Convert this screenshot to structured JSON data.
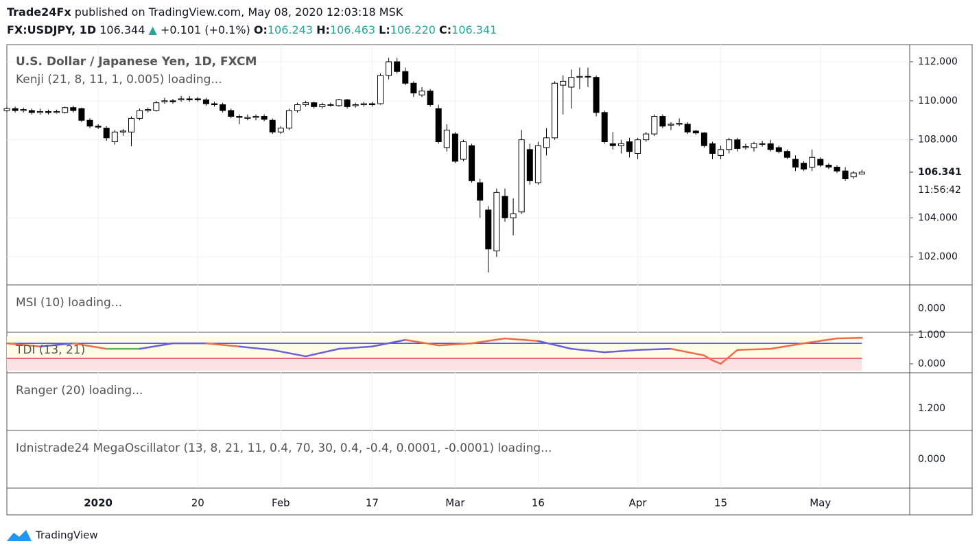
{
  "header": {
    "publisher": "Trade24Fx",
    "published": "published on TradingView.com, May 08, 2020 12:03:18 MSK",
    "symbol": "FX:USDJPY, 1D",
    "price": "106.344",
    "change": "+0.101 (+0.1%)",
    "ohlc": [
      {
        "label": "O:",
        "value": "106.243"
      },
      {
        "label": "H:",
        "value": "106.463"
      },
      {
        "label": "L:",
        "value": "106.220"
      },
      {
        "label": "C:",
        "value": "106.341"
      }
    ]
  },
  "chart_data": [
    {
      "type": "candlestick",
      "title": "U.S. Dollar / Japanese Yen, 1D, FXCM",
      "subtitle": "Kenji (21, 8, 11, 1, 0.005) loading...",
      "countdown": "11:56:42",
      "up_color": "#ffffff",
      "down_color": "#000000",
      "categories": [
        null,
        null,
        null,
        null,
        null,
        null,
        null,
        null,
        null,
        null,
        null,
        "2020",
        null,
        null,
        null,
        null,
        null,
        null,
        null,
        null,
        null,
        null,
        null,
        "20",
        null,
        null,
        null,
        null,
        null,
        null,
        null,
        null,
        null,
        "Feb",
        null,
        null,
        null,
        null,
        null,
        null,
        null,
        null,
        null,
        null,
        "17",
        null,
        null,
        null,
        null,
        null,
        null,
        null,
        null,
        null,
        "Mar",
        null,
        null,
        null,
        null,
        null,
        null,
        null,
        null,
        null,
        "16",
        null,
        null,
        null,
        null,
        null,
        null,
        null,
        null,
        null,
        null,
        null,
        "Apr",
        null,
        null,
        null,
        null,
        null,
        null,
        null,
        null,
        null,
        "15",
        null,
        null,
        null,
        null,
        null,
        null,
        null,
        null,
        null,
        null,
        null,
        "May",
        null,
        null,
        null,
        null,
        null
      ],
      "open": [
        109.5,
        109.6,
        109.5,
        109.5,
        109.4,
        109.45,
        109.4,
        109.4,
        109.65,
        109.6,
        109.0,
        108.7,
        108.6,
        107.9,
        108.4,
        108.4,
        109.1,
        109.5,
        109.5,
        109.95,
        110.0,
        110.05,
        110.1,
        110.1,
        110.05,
        109.85,
        109.8,
        109.5,
        109.2,
        109.1,
        109.15,
        109.2,
        109.0,
        108.4,
        108.6,
        109.5,
        109.8,
        109.9,
        109.7,
        109.8,
        109.75,
        110.05,
        109.75,
        109.8,
        109.85,
        109.85,
        111.3,
        112.0,
        111.5,
        110.9,
        110.3,
        110.5,
        109.6,
        107.6,
        108.3,
        107.0,
        107.7,
        105.8,
        104.4,
        102.3,
        105.1,
        104.0,
        104.3,
        107.5,
        105.8,
        107.6,
        108.1,
        110.8,
        110.7,
        111.2,
        111.25,
        111.2,
        109.4,
        107.8,
        107.7,
        107.9,
        107.3,
        108.0,
        108.3,
        109.2,
        108.75,
        108.8,
        108.8,
        108.45,
        108.35,
        107.8,
        107.2,
        107.5,
        108.0,
        107.6,
        107.6,
        107.8,
        107.8,
        107.6,
        107.4,
        107.0,
        106.8,
        106.6,
        107.0,
        106.7,
        106.6,
        106.4,
        106.1,
        106.243
      ],
      "high": [
        109.7,
        109.7,
        109.65,
        109.6,
        109.6,
        109.55,
        109.55,
        109.7,
        109.75,
        109.65,
        109.1,
        108.8,
        108.7,
        108.5,
        108.55,
        109.2,
        109.6,
        109.65,
        110.0,
        110.15,
        110.1,
        110.25,
        110.25,
        110.2,
        110.15,
        109.95,
        109.9,
        109.6,
        109.3,
        109.3,
        109.3,
        109.3,
        109.1,
        108.7,
        109.6,
        109.9,
        110.0,
        109.95,
        109.9,
        109.9,
        110.1,
        110.1,
        109.9,
        109.95,
        109.95,
        111.4,
        112.2,
        112.2,
        111.7,
        111.0,
        110.7,
        110.6,
        109.8,
        108.8,
        108.4,
        108.0,
        107.8,
        106.0,
        104.6,
        105.5,
        105.5,
        105.0,
        108.5,
        107.8,
        107.9,
        108.6,
        111.0,
        111.3,
        111.6,
        111.7,
        111.7,
        111.3,
        109.5,
        108.4,
        108.0,
        108.1,
        108.1,
        108.4,
        109.3,
        109.3,
        108.9,
        109.1,
        108.9,
        108.5,
        108.4,
        107.9,
        107.7,
        108.1,
        108.1,
        107.8,
        107.9,
        107.95,
        108.0,
        107.7,
        107.5,
        107.2,
        106.9,
        107.5,
        107.1,
        106.8,
        106.7,
        106.6,
        106.4,
        106.463
      ],
      "low": [
        109.4,
        109.4,
        109.4,
        109.3,
        109.3,
        109.3,
        109.35,
        109.35,
        109.4,
        108.9,
        108.6,
        108.55,
        107.95,
        107.75,
        108.2,
        107.67,
        109.0,
        109.4,
        109.45,
        109.85,
        109.85,
        109.95,
        109.95,
        109.95,
        109.75,
        109.7,
        109.4,
        109.1,
        108.8,
        109.0,
        109.0,
        108.95,
        108.3,
        108.3,
        108.5,
        109.4,
        109.7,
        109.6,
        109.6,
        109.7,
        109.7,
        109.6,
        109.65,
        109.7,
        109.7,
        109.8,
        111.1,
        111.4,
        110.8,
        110.2,
        110.2,
        109.7,
        107.8,
        107.4,
        106.8,
        106.9,
        105.8,
        104.0,
        101.2,
        102.0,
        103.8,
        103.1,
        104.2,
        105.7,
        105.7,
        107.2,
        108.0,
        109.3,
        109.6,
        110.6,
        110.7,
        109.2,
        107.8,
        107.5,
        107.3,
        107.1,
        107.0,
        107.9,
        108.2,
        108.6,
        108.5,
        108.7,
        108.3,
        108.25,
        107.6,
        107.0,
        107.0,
        107.3,
        107.4,
        107.5,
        107.4,
        107.65,
        107.4,
        107.3,
        107.0,
        106.4,
        106.4,
        106.4,
        106.6,
        106.5,
        106.3,
        105.9,
        106.0,
        106.22
      ],
      "close": [
        109.6,
        109.5,
        109.55,
        109.4,
        109.45,
        109.4,
        109.45,
        109.65,
        109.5,
        109.0,
        108.7,
        108.65,
        108.1,
        108.4,
        108.45,
        109.1,
        109.5,
        109.55,
        109.9,
        110.0,
        109.95,
        110.1,
        110.05,
        110.05,
        109.85,
        109.8,
        109.5,
        109.2,
        109.15,
        109.15,
        109.2,
        109.05,
        108.4,
        108.6,
        109.5,
        109.8,
        109.9,
        109.7,
        109.8,
        109.8,
        110.05,
        109.7,
        109.8,
        109.85,
        109.8,
        111.3,
        112.0,
        111.5,
        110.9,
        110.4,
        110.5,
        109.8,
        107.9,
        108.5,
        106.9,
        107.9,
        105.9,
        104.9,
        102.4,
        105.3,
        104.0,
        104.2,
        108.0,
        105.9,
        107.7,
        108.1,
        110.9,
        111.0,
        111.2,
        111.25,
        111.25,
        109.4,
        107.9,
        107.7,
        107.8,
        107.4,
        108.0,
        108.3,
        109.2,
        108.7,
        108.8,
        108.85,
        108.4,
        108.35,
        107.7,
        107.3,
        107.5,
        108.0,
        107.55,
        107.65,
        107.8,
        107.8,
        107.5,
        107.4,
        107.1,
        106.6,
        106.5,
        107.1,
        106.7,
        106.6,
        106.4,
        106.0,
        106.3,
        106.341
      ],
      "ylim": [
        100.56,
        112.88
      ],
      "yticks": [
        {
          "value": 112,
          "label": "112.000"
        },
        {
          "value": 110,
          "label": "110.000"
        },
        {
          "value": 108,
          "label": "108.000"
        },
        {
          "value": 104,
          "label": "104.000"
        },
        {
          "value": 102,
          "label": "102.000"
        }
      ],
      "grid": true
    },
    {
      "type": "line",
      "title": "TDI (13, 21)",
      "x": [
        0,
        4,
        8,
        12,
        16,
        20,
        24,
        28,
        32,
        36,
        40,
        44,
        48,
        52,
        56,
        60,
        64,
        68,
        72,
        76,
        80,
        84,
        85,
        86,
        88,
        92,
        96,
        100,
        103
      ],
      "values": [
        0.71,
        0.6,
        0.71,
        0.52,
        0.52,
        0.71,
        0.71,
        0.6,
        0.48,
        0.26,
        0.52,
        0.6,
        0.83,
        0.64,
        0.71,
        0.88,
        0.79,
        0.52,
        0.4,
        0.48,
        0.52,
        0.29,
        0.12,
        0.0,
        0.48,
        0.52,
        0.71,
        0.88,
        0.9
      ],
      "colors": [
        "#ef6b4a",
        "#6a5fd8",
        "#ef6b4a",
        "#5fb35a",
        "#6a5fd8",
        "#6a5fd8",
        "#ef6b4a",
        "#6a5fd8",
        "#6a5fd8",
        "#6a5fd8",
        "#6a5fd8",
        "#6a5fd8",
        "#ef6b4a",
        "#ef6b4a",
        "#ef6b4a",
        "#ef6b4a",
        "#6a5fd8",
        "#6a5fd8",
        "#6a5fd8",
        "#6a5fd8",
        "#ef6b4a",
        "#ef6b4a",
        "#ef6b4a",
        "#ef6b4a",
        "#ef6b4a",
        "#ef6b4a",
        "#ef6b4a",
        "#ef6b4a"
      ],
      "levels": [
        {
          "value": 0.71,
          "color": "#3c3cf0"
        },
        {
          "value": 0.19,
          "color": "#e04050"
        }
      ],
      "bands": [
        {
          "from": 0.19,
          "to": 0.95,
          "color": "#fffde6"
        },
        {
          "from": -0.24,
          "to": 0.19,
          "color": "#fde2e4"
        }
      ],
      "ylim": [
        -0.31,
        1.07
      ],
      "yticks": [
        {
          "value": 1,
          "label": "1.000"
        },
        {
          "value": 0,
          "label": "0.000"
        }
      ]
    }
  ],
  "panes": [
    {
      "title": "MSI (10) loading...",
      "scale": "0.000"
    },
    {
      "title": "Ranger (20) loading...",
      "scale": "1.200"
    },
    {
      "title": "Idnistrade24 MegaOscillator (13, 8, 21, 11, 0.4, 70, 30, 0.4, -0.4, 0.0001, -0.0001) loading...",
      "scale": "0.000"
    }
  ],
  "footer": "TradingView"
}
